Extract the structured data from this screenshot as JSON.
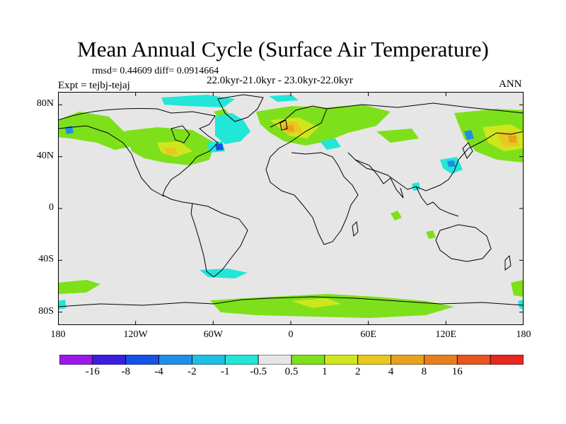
{
  "title": "Mean Annual Cycle (Surface Air Temperature)",
  "stats": "rmsd= 0.44609 diff= 0.0914664",
  "period": "22.0kyr-21.0kyr - 23.0kyr-22.0kyr",
  "experiment": "Expt = tejbj-tejaj",
  "season": "ANN",
  "lat_ticks": [
    {
      "label": "80N",
      "value": 80
    },
    {
      "label": "40N",
      "value": 40
    },
    {
      "label": "0",
      "value": 0
    },
    {
      "label": "40S",
      "value": -40
    },
    {
      "label": "80S",
      "value": -80
    }
  ],
  "lon_ticks": [
    {
      "label": "180",
      "value": -180
    },
    {
      "label": "120W",
      "value": -120
    },
    {
      "label": "60W",
      "value": -60
    },
    {
      "label": "0",
      "value": 0
    },
    {
      "label": "60E",
      "value": 60
    },
    {
      "label": "120E",
      "value": 120
    },
    {
      "label": "180",
      "value": 180
    }
  ],
  "colorbar": {
    "colors": [
      "#9a18e8",
      "#3c1ee0",
      "#1552e6",
      "#1f8fe6",
      "#1ebfe6",
      "#22e6d8",
      "#e6e6e6",
      "#7ee01a",
      "#cfe61e",
      "#e6c81e",
      "#e6a21e",
      "#e67e1e",
      "#e6561e",
      "#e6281e"
    ],
    "labels": [
      "-16",
      "-8",
      "-4",
      "-2",
      "-1",
      "-0.5",
      "0.5",
      "1",
      "2",
      "4",
      "8",
      "16"
    ]
  },
  "colors": {
    "background": "#e6e6e6",
    "land_outline": "#000000",
    "warm_light": "#7ee01a",
    "warm_mid": "#e6a21e",
    "cool_light": "#22e6d8",
    "cool_mid": "#1f8fe6",
    "cool_dark": "#1552e6"
  }
}
